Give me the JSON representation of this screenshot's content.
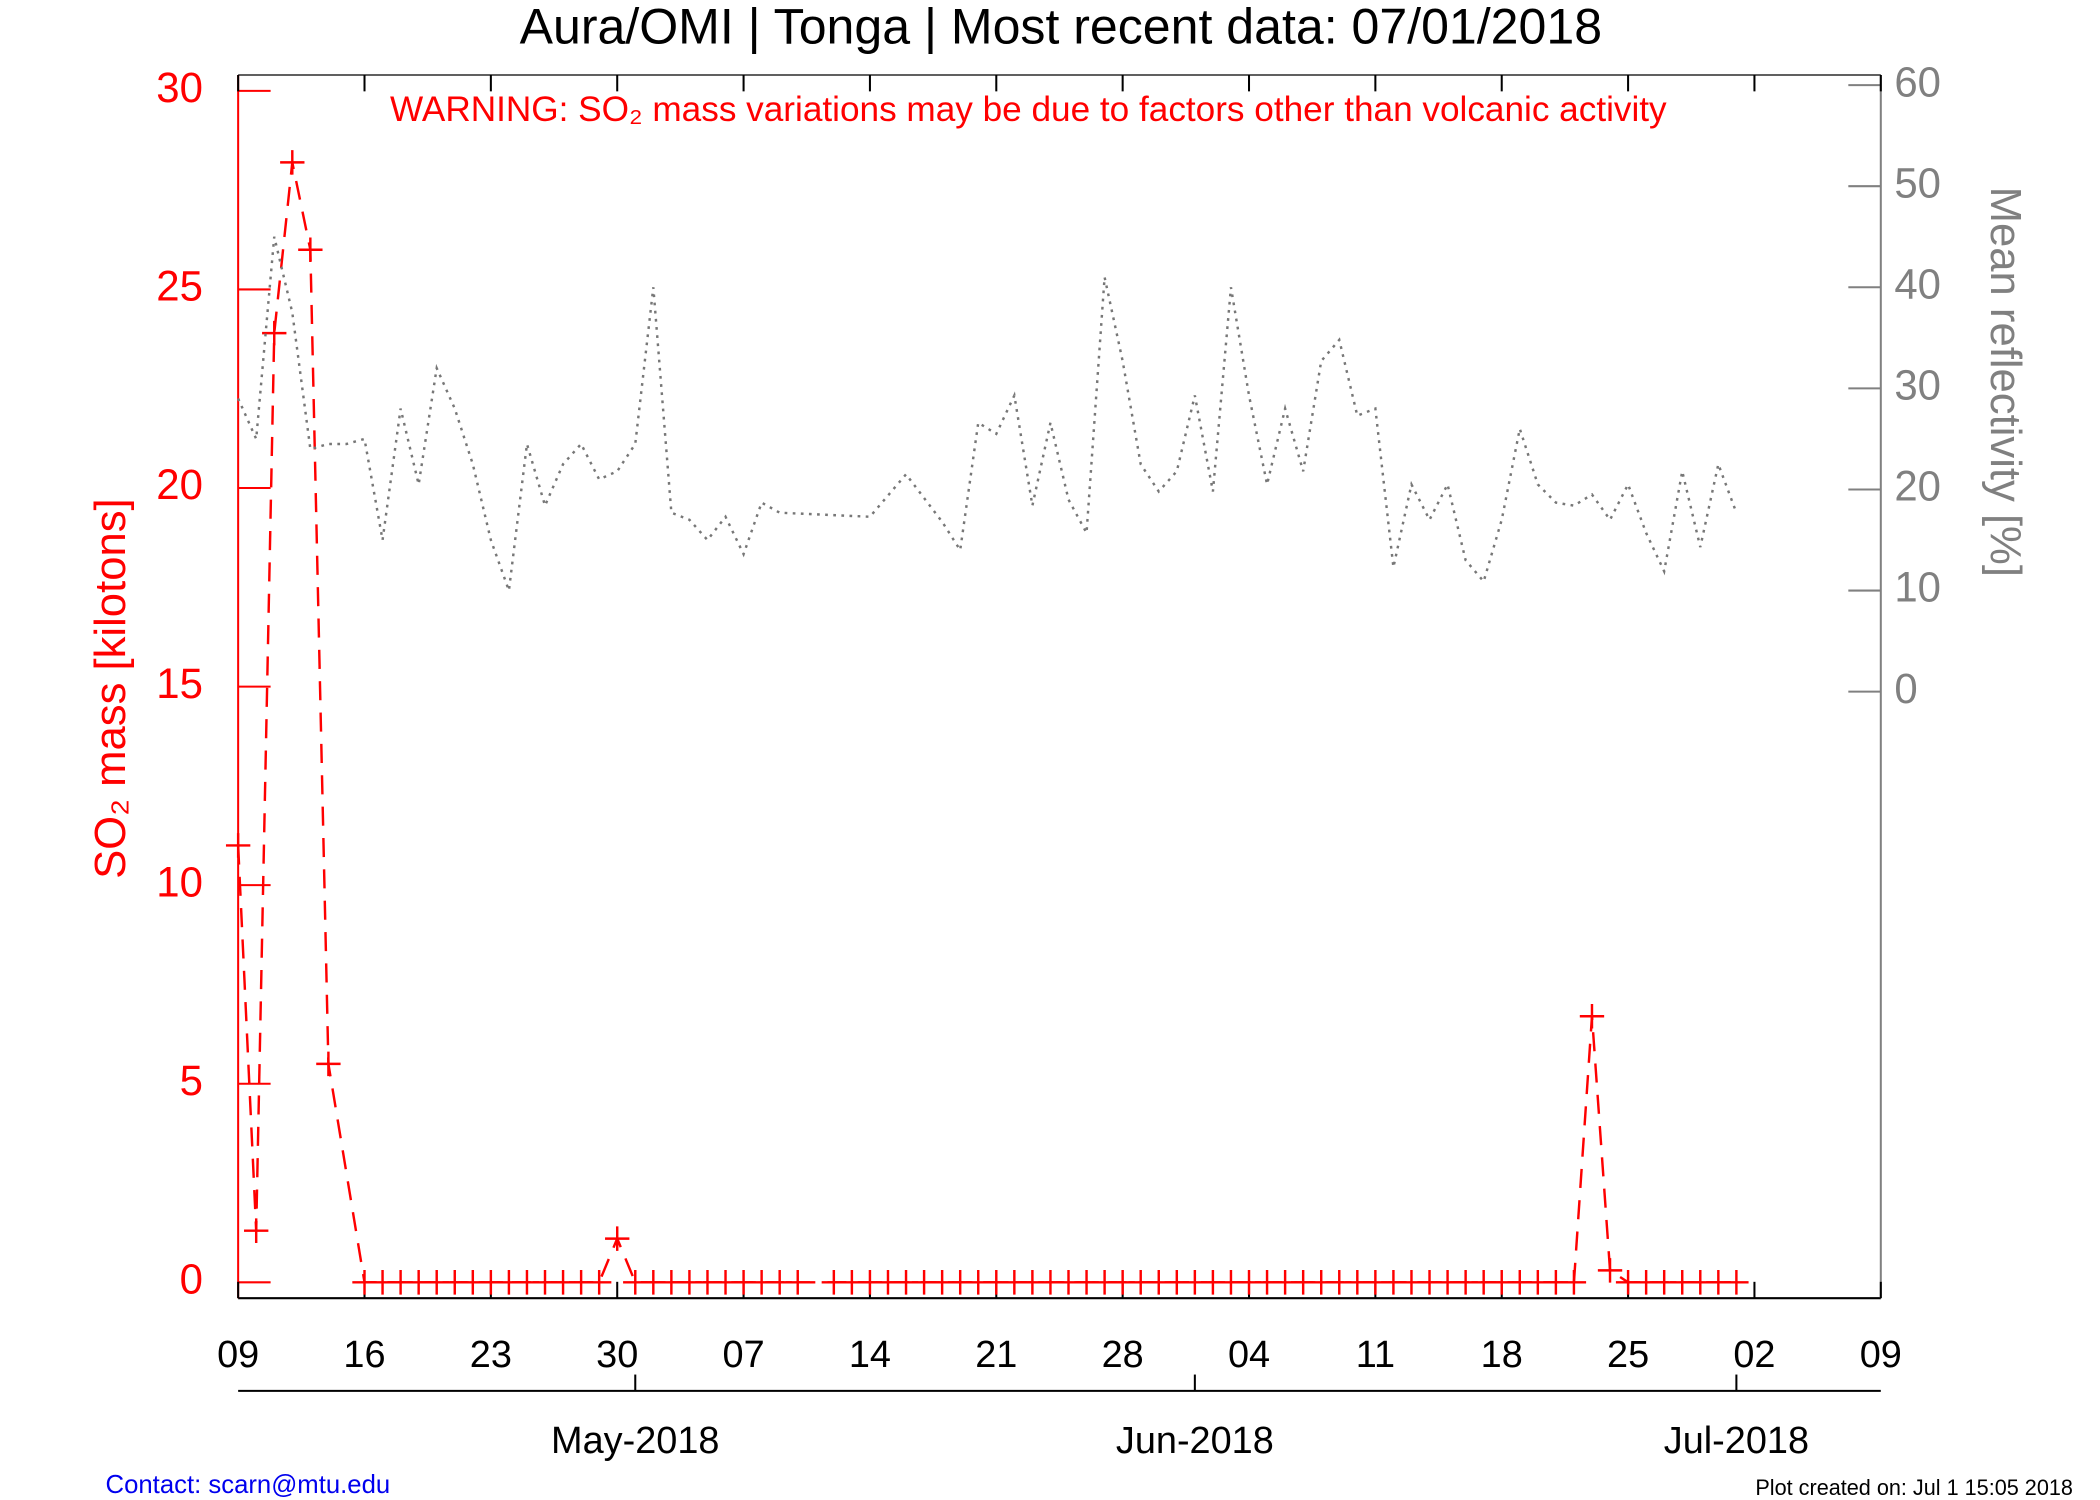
{
  "chart_data": {
    "type": "line",
    "title": "Aura/OMI | Tonga | Most recent data: 07/01/2018",
    "annotation": "WARNING: SO₂ mass variations may be due to factors other than volcanic activity",
    "ylabel": "SO₂ mass [kilotons]",
    "y2label": "Mean reflectivity [%]",
    "xlim": [
      "2018-04-09",
      "2018-07-09"
    ],
    "xticks": [
      {
        "value": "2018-04-09",
        "label": "09"
      },
      {
        "value": "2018-04-16",
        "label": "16"
      },
      {
        "value": "2018-04-23",
        "label": "23"
      },
      {
        "value": "2018-04-30",
        "label": "30"
      },
      {
        "value": "2018-05-07",
        "label": "07"
      },
      {
        "value": "2018-05-14",
        "label": "14"
      },
      {
        "value": "2018-05-21",
        "label": "21"
      },
      {
        "value": "2018-05-28",
        "label": "28"
      },
      {
        "value": "2018-06-04",
        "label": "04"
      },
      {
        "value": "2018-06-11",
        "label": "11"
      },
      {
        "value": "2018-06-18",
        "label": "18"
      },
      {
        "value": "2018-06-25",
        "label": "25"
      },
      {
        "value": "2018-07-02",
        "label": "02"
      },
      {
        "value": "2018-07-09",
        "label": "09"
      }
    ],
    "month_ticks": [
      {
        "value": "2018-05-01",
        "label": "May-2018"
      },
      {
        "value": "2018-06-01",
        "label": "Jun-2018"
      },
      {
        "value": "2018-07-01",
        "label": "Jul-2018"
      }
    ],
    "ylim": [
      -0.4,
      30.4
    ],
    "yticks": [
      0,
      5,
      10,
      15,
      20,
      25,
      30
    ],
    "y2lim": [
      -60,
      61
    ],
    "y2ticks": [
      0,
      10,
      20,
      30,
      40,
      50,
      60
    ],
    "series": [
      {
        "color": "#ff0000",
        "style": "dashed",
        "marker": "plus",
        "x": [
          "2018-04-09",
          "2018-04-10",
          "2018-04-11",
          "2018-04-12",
          "2018-04-13",
          "2018-04-14",
          "2018-04-16",
          "2018-04-17",
          "2018-04-18",
          "2018-04-19",
          "2018-04-20",
          "2018-04-21",
          "2018-04-22",
          "2018-04-23",
          "2018-04-24",
          "2018-04-25",
          "2018-04-26",
          "2018-04-27",
          "2018-04-28",
          "2018-04-29",
          "2018-04-30",
          "2018-05-01",
          "2018-05-02",
          "2018-05-03",
          "2018-05-04",
          "2018-05-05",
          "2018-05-06",
          "2018-05-07",
          "2018-05-08",
          "2018-05-09",
          "2018-05-10",
          "2018-05-12",
          "2018-05-13",
          "2018-05-14",
          "2018-05-15",
          "2018-05-16",
          "2018-05-17",
          "2018-05-18",
          "2018-05-19",
          "2018-05-20",
          "2018-05-21",
          "2018-05-22",
          "2018-05-23",
          "2018-05-24",
          "2018-05-25",
          "2018-05-26",
          "2018-05-27",
          "2018-05-28",
          "2018-05-29",
          "2018-05-30",
          "2018-05-31",
          "2018-06-01",
          "2018-06-02",
          "2018-06-03",
          "2018-06-04",
          "2018-06-05",
          "2018-06-06",
          "2018-06-07",
          "2018-06-08",
          "2018-06-09",
          "2018-06-10",
          "2018-06-11",
          "2018-06-12",
          "2018-06-13",
          "2018-06-14",
          "2018-06-15",
          "2018-06-16",
          "2018-06-17",
          "2018-06-18",
          "2018-06-19",
          "2018-06-20",
          "2018-06-21",
          "2018-06-22",
          "2018-06-23",
          "2018-06-24",
          "2018-06-25",
          "2018-06-26",
          "2018-06-27",
          "2018-06-28",
          "2018-06-29",
          "2018-06-30",
          "2018-07-01"
        ],
        "values": [
          11,
          1.3,
          23.9,
          28.2,
          26,
          5.5,
          0,
          0,
          0,
          0,
          0,
          0,
          0,
          0,
          0,
          0,
          0,
          0,
          0,
          0,
          1.1,
          0,
          0,
          0,
          0,
          0,
          0,
          0,
          0,
          0,
          0,
          0,
          0,
          0,
          0,
          0,
          0,
          0,
          0,
          0,
          0,
          0,
          0,
          0,
          0,
          0,
          0,
          0,
          0,
          0,
          0,
          0,
          0,
          0,
          0,
          0,
          0,
          0,
          0,
          0,
          0,
          0,
          0,
          0,
          0,
          0,
          0,
          0,
          0,
          0,
          0,
          0,
          0,
          6.7,
          0.3,
          0,
          0,
          0,
          0,
          0,
          0,
          0
        ]
      },
      {
        "color": "#777777",
        "style": "dotted",
        "axis": "y2",
        "x": [
          "2018-04-09",
          "2018-04-10",
          "2018-04-11",
          "2018-04-12",
          "2018-04-13",
          "2018-04-14",
          "2018-04-15",
          "2018-04-16",
          "2018-04-17",
          "2018-04-18",
          "2018-04-19",
          "2018-04-20",
          "2018-04-21",
          "2018-04-22",
          "2018-04-23",
          "2018-04-24",
          "2018-04-25",
          "2018-04-26",
          "2018-04-27",
          "2018-04-28",
          "2018-04-29",
          "2018-04-30",
          "2018-05-01",
          "2018-05-02",
          "2018-05-03",
          "2018-05-04",
          "2018-05-05",
          "2018-05-06",
          "2018-05-07",
          "2018-05-08",
          "2018-05-09",
          "2018-05-14",
          "2018-05-16",
          "2018-05-18",
          "2018-05-19",
          "2018-05-20",
          "2018-05-21",
          "2018-05-22",
          "2018-05-23",
          "2018-05-24",
          "2018-05-25",
          "2018-05-26",
          "2018-05-27",
          "2018-05-28",
          "2018-05-29",
          "2018-05-30",
          "2018-05-31",
          "2018-06-01",
          "2018-06-02",
          "2018-06-03",
          "2018-06-04",
          "2018-06-05",
          "2018-06-06",
          "2018-06-07",
          "2018-06-08",
          "2018-06-09",
          "2018-06-10",
          "2018-06-11",
          "2018-06-12",
          "2018-06-13",
          "2018-06-14",
          "2018-06-15",
          "2018-06-16",
          "2018-06-17",
          "2018-06-18",
          "2018-06-19",
          "2018-06-20",
          "2018-06-21",
          "2018-06-22",
          "2018-06-23",
          "2018-06-24",
          "2018-06-25",
          "2018-06-26",
          "2018-06-27",
          "2018-06-28",
          "2018-06-29",
          "2018-06-30",
          "2018-07-01"
        ],
        "values": [
          29,
          25,
          45,
          37.5,
          24,
          24.5,
          24.5,
          25,
          15,
          28,
          20.5,
          32,
          28,
          22.5,
          15,
          10,
          24.5,
          18.4,
          22.5,
          24.5,
          21,
          21.8,
          24.5,
          40,
          17.7,
          17,
          15,
          17.3,
          13.6,
          18.7,
          17.7,
          17.3,
          21.5,
          16.8,
          14,
          26.6,
          25.5,
          29.3,
          18.4,
          26.6,
          19,
          15.7,
          41,
          32.7,
          22.5,
          19.8,
          21.8,
          29.3,
          19.8,
          40,
          29.3,
          20.5,
          28,
          21.8,
          32.7,
          34.8,
          27.3,
          28,
          12.3,
          20.5,
          17,
          20.5,
          13,
          10.9,
          17,
          26,
          20.5,
          18.7,
          18.4,
          19.5,
          17,
          20.5,
          15.7,
          11.9,
          21.8,
          14.3,
          22.5,
          17.7
        ]
      }
    ],
    "footer_left": "Contact: scarn@mtu.edu",
    "footer_right": "Plot created on: Jul  1 15:05 2018"
  }
}
